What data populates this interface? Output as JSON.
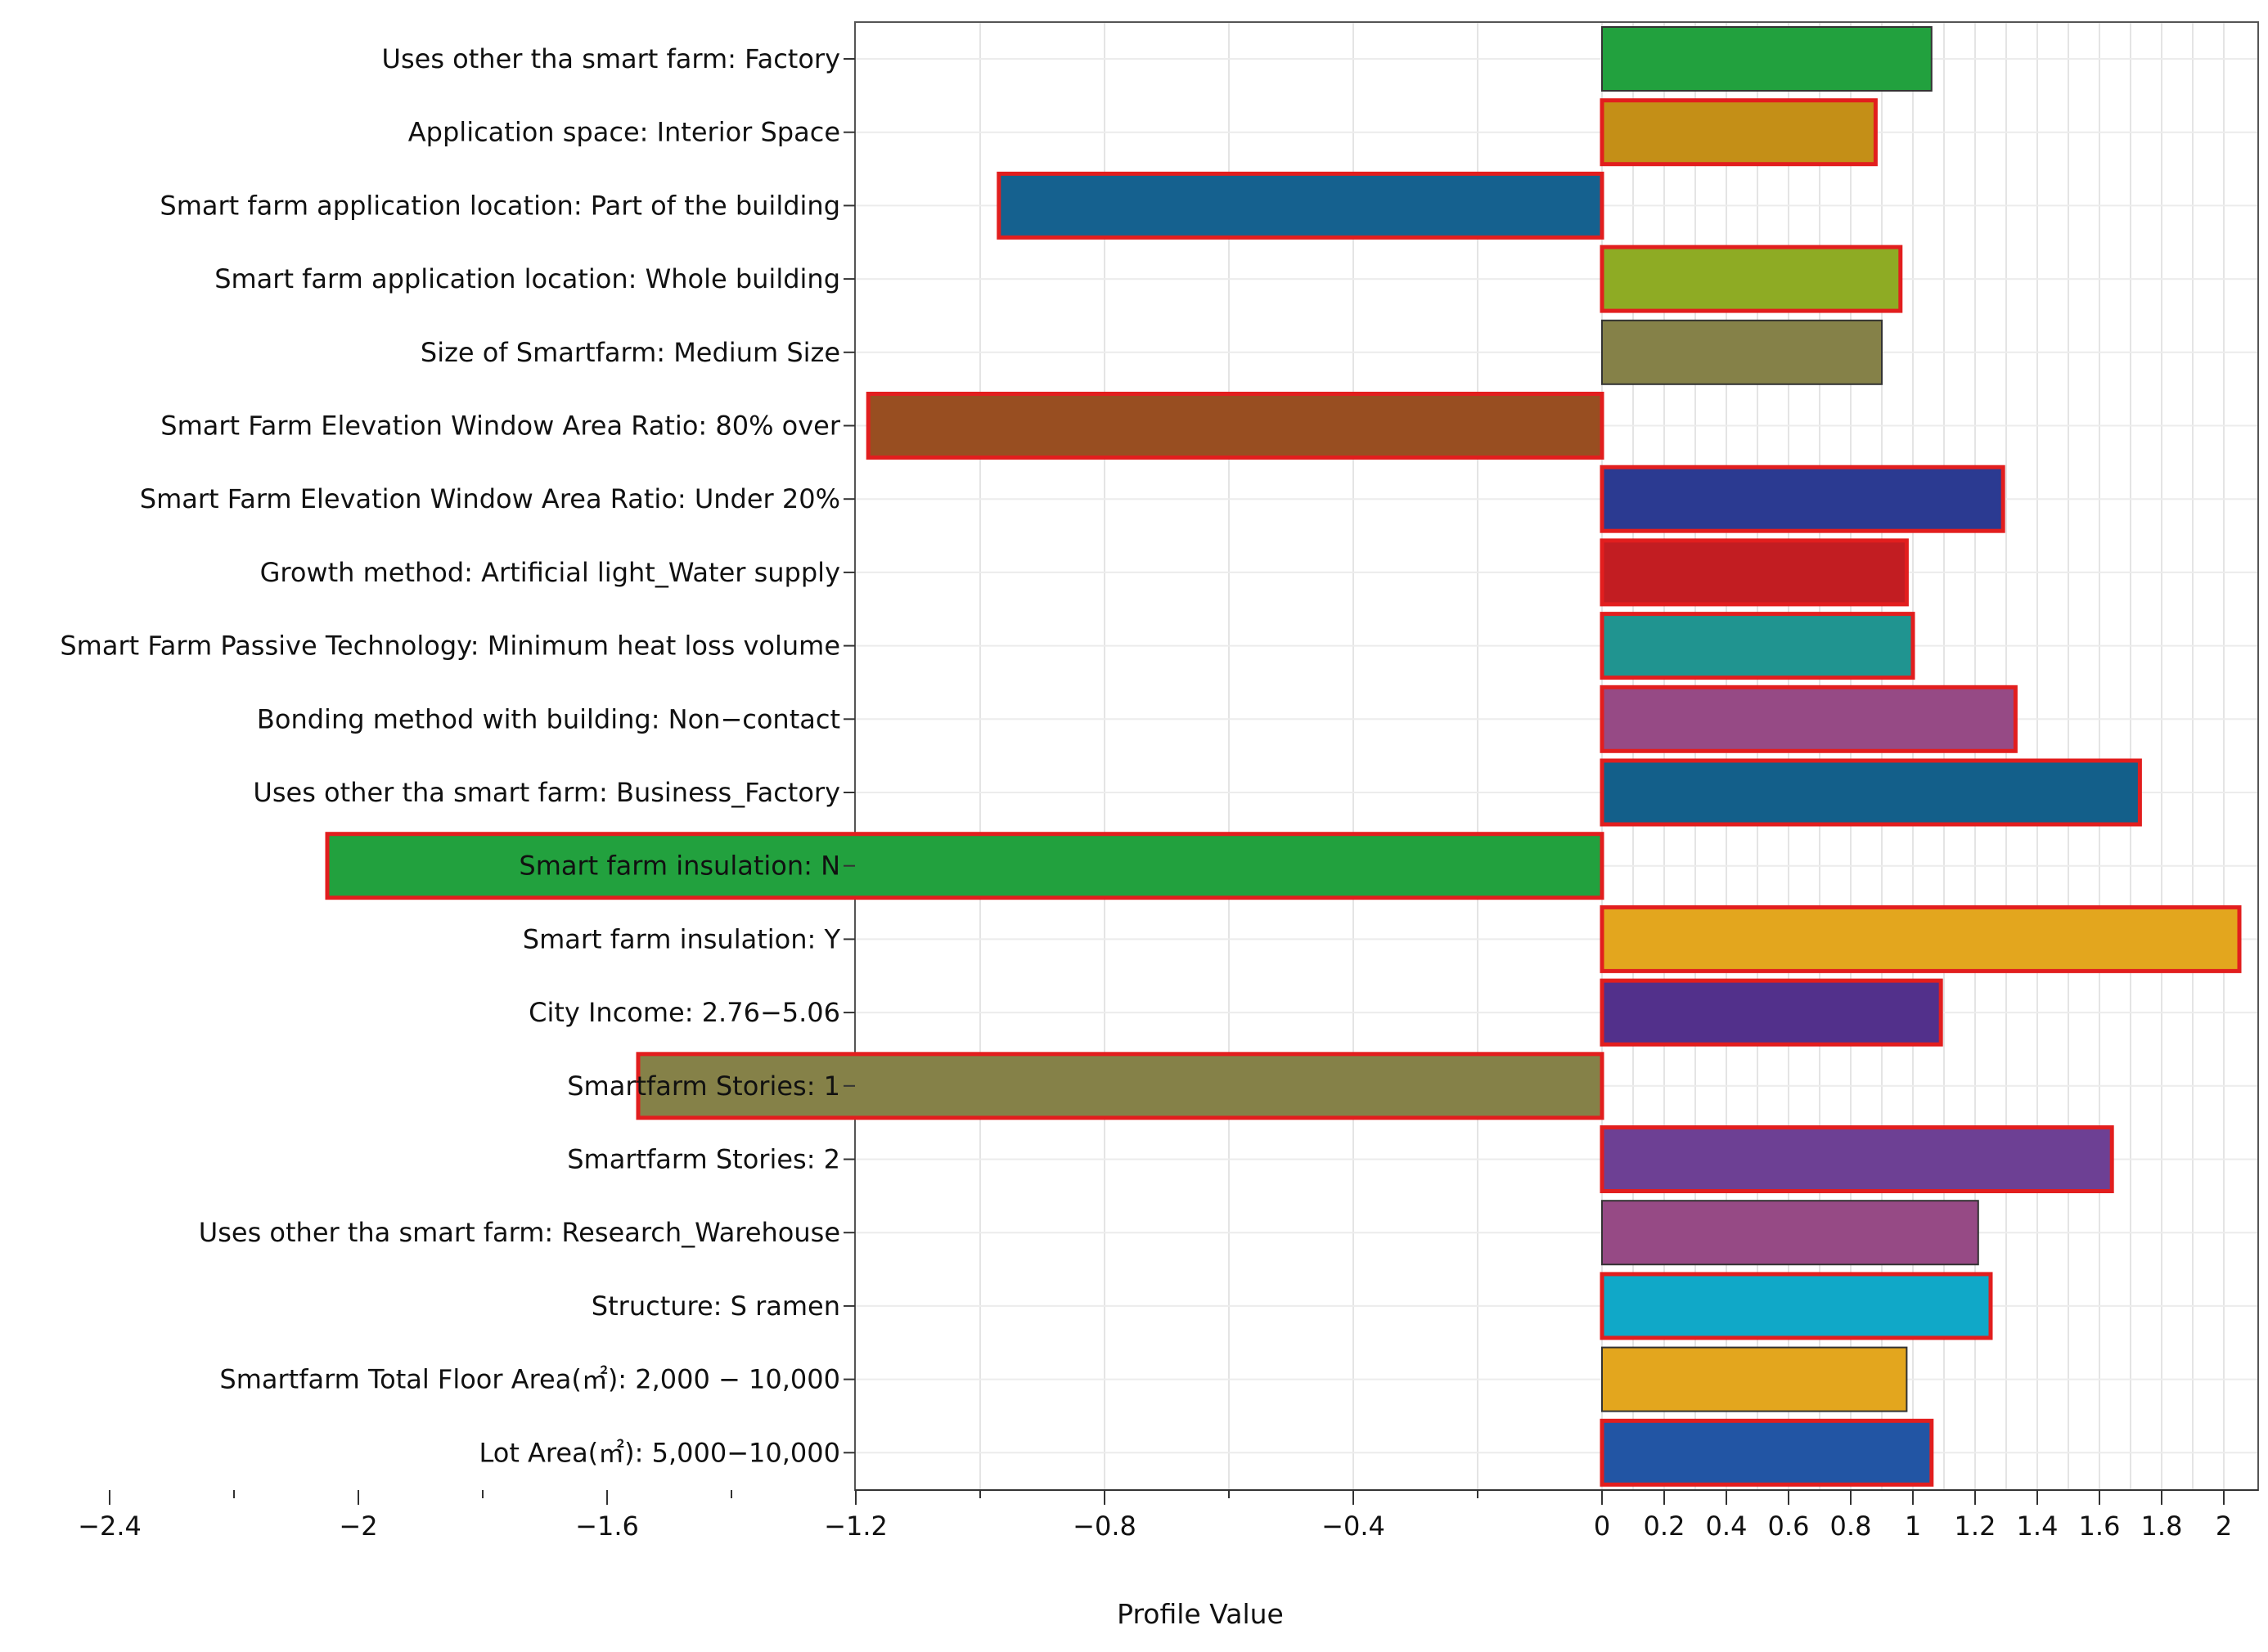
{
  "chart_data": {
    "type": "bar",
    "orientation": "horizontal",
    "title": "",
    "xlabel": "Profile Value",
    "ylabel": "",
    "xlim": [
      -2.4,
      2.05
    ],
    "x_ticks": [
      -2.4,
      -2,
      -1.6,
      -1.2,
      -0.8,
      -0.4,
      0,
      0.2,
      0.4,
      0.6,
      0.8,
      1,
      1.2,
      1.4,
      1.6,
      1.8,
      2
    ],
    "x_tick_labels": [
      "−2.4",
      "−2",
      "−1.6",
      "−1.2",
      "−0.8",
      "−0.4",
      "0",
      "0.2",
      "0.4",
      "0.6",
      "0.8",
      "1",
      "1.2",
      "1.4",
      "1.6",
      "1.8",
      "2"
    ],
    "grid": true,
    "categories": [
      "Uses other tha smart farm: Factory",
      "Application space: Interior Space",
      "Smart farm application location: Part of the building",
      "Smart farm application location: Whole building",
      "Size of Smartfarm: Medium Size",
      "Smart Farm Elevation Window Area Ratio: 80% over",
      "Smart Farm Elevation Window Area Ratio: Under 20%",
      "Growth method: Artificial light_Water supply",
      "Smart Farm Passive Technology: Minimum heat loss volume",
      "Bonding method with building: Non−contact",
      "Uses other tha smart farm: Business_Factory",
      "Smart farm insulation: N",
      "Smart farm insulation: Y",
      "City Income: 2.76−5.06",
      "Smartfarm Stories: 1",
      "Smartfarm Stories: 2",
      "Uses other tha smart farm: Research_Warehouse",
      "Structure: S ramen",
      "Smartfarm Total Floor Area(㎡): 2,000 − 10,000",
      "Lot Area(㎡): 5,000−10,000"
    ],
    "values": [
      1.06,
      0.88,
      -0.97,
      0.96,
      0.9,
      -1.18,
      1.29,
      0.98,
      1.0,
      1.33,
      1.73,
      -2.05,
      2.05,
      1.09,
      -1.55,
      1.64,
      1.21,
      1.25,
      0.98,
      1.06
    ],
    "colors": [
      "#22A13E",
      "#C48F17",
      "#15618F",
      "#8EAB24",
      "#858148",
      "#984E21",
      "#2B3A91",
      "#C21D22",
      "#209490",
      "#964A85",
      "#135F8A",
      "#22A13E",
      "#E3A61E",
      "#52308B",
      "#858148",
      "#6D4094",
      "#964A85",
      "#10A8C8",
      "#E3A61E",
      "#2255A4"
    ],
    "highlighted": [
      false,
      true,
      true,
      true,
      false,
      true,
      true,
      true,
      true,
      true,
      true,
      true,
      true,
      true,
      true,
      true,
      false,
      true,
      false,
      true
    ],
    "highlight_color": "#E21E1E",
    "normal_border_color": "#333333"
  }
}
